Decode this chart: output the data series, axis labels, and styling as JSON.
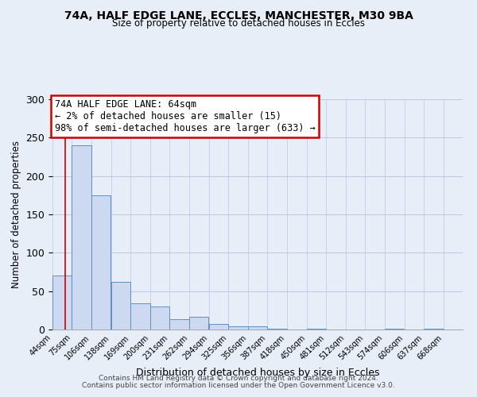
{
  "title1": "74A, HALF EDGE LANE, ECCLES, MANCHESTER, M30 9BA",
  "title2": "Size of property relative to detached houses in Eccles",
  "xlabel": "Distribution of detached houses by size in Eccles",
  "ylabel": "Number of detached properties",
  "footer1": "Contains HM Land Registry data © Crown copyright and database right 2024.",
  "footer2": "Contains public sector information licensed under the Open Government Licence v3.0.",
  "bin_labels": [
    "44sqm",
    "75sqm",
    "106sqm",
    "138sqm",
    "169sqm",
    "200sqm",
    "231sqm",
    "262sqm",
    "294sqm",
    "325sqm",
    "356sqm",
    "387sqm",
    "418sqm",
    "450sqm",
    "481sqm",
    "512sqm",
    "543sqm",
    "574sqm",
    "606sqm",
    "637sqm",
    "668sqm"
  ],
  "bar_values": [
    70,
    240,
    175,
    62,
    34,
    30,
    13,
    17,
    7,
    4,
    4,
    1,
    0,
    1,
    0,
    0,
    0,
    1,
    0,
    1
  ],
  "bar_color": "#ccd9f0",
  "bar_edge_color": "#6090c0",
  "annotation_box_color": "#ffffff",
  "annotation_box_edge_color": "#cc0000",
  "red_line_color": "#cc0000",
  "bin_edges": [
    44,
    75,
    106,
    138,
    169,
    200,
    231,
    262,
    294,
    325,
    356,
    387,
    418,
    450,
    481,
    512,
    543,
    574,
    606,
    637,
    668
  ],
  "bin_width": 31,
  "ylim": [
    0,
    300
  ],
  "yticks": [
    0,
    50,
    100,
    150,
    200,
    250,
    300
  ],
  "annotation_lines": [
    "74A HALF EDGE LANE: 64sqm",
    "← 2% of detached houses are smaller (15)",
    "98% of semi-detached houses are larger (633) →"
  ],
  "background_color": "#e8eef8",
  "grid_color": "#b8c8e8",
  "red_line_x": 64
}
